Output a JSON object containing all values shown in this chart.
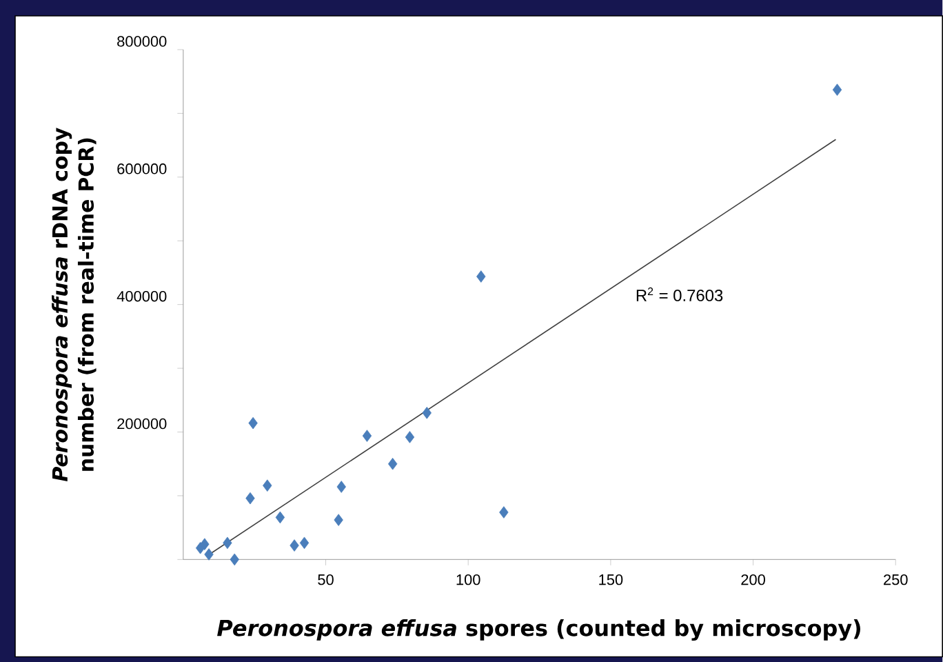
{
  "chart_data": {
    "type": "scatter",
    "xlabel": "*Peronospora effusa* spores (counted by microscopy)",
    "ylabel": "*Peronospora effusa* rDNA copy number (from real-time PCR)",
    "xlim": [
      0,
      250
    ],
    "xticks": [
      50,
      100,
      150,
      200,
      250
    ],
    "ylim": [
      0,
      800000
    ],
    "yticks": [
      {
        "value": 0,
        "label": null
      },
      {
        "value": 100000,
        "label": null
      },
      200000,
      {
        "value": 300000,
        "label": null
      },
      400000,
      {
        "value": 500000,
        "label": null
      },
      600000,
      {
        "value": 700000,
        "label": null
      },
      800000
    ],
    "marker": "diamond",
    "grid": false,
    "annotations": [
      "R$^{2}$ = 0.7603"
    ],
    "series": [
      {
        "color": "#4a7ebb",
        "x": [
          6,
          7.5,
          9,
          15.5,
          18,
          23.5,
          24.5,
          29.5,
          34,
          39,
          42.5,
          54.5,
          55.5,
          64.5,
          73.5,
          79.5,
          85.5,
          104.5,
          112.5,
          229.5
        ],
        "values": [
          18000,
          24000,
          8000,
          26000,
          0,
          96000,
          214000,
          116000,
          66000,
          22000,
          26000,
          62000,
          114000,
          194000,
          150000,
          192000,
          230000,
          444000,
          74000,
          737000
        ]
      },
      {
        "type": "line",
        "color": "#404040",
        "marker": "none",
        "x": [
          9.5,
          229
        ],
        "values": [
          9000,
          659000
        ]
      }
    ]
  }
}
